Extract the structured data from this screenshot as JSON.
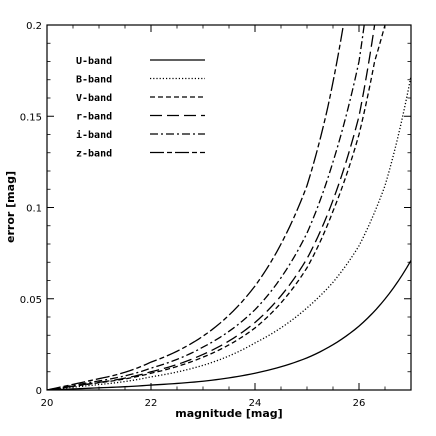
{
  "chart_data": {
    "type": "line",
    "title": "",
    "xlabel": "magnitude [mag]",
    "ylabel": "error [mag]",
    "xlim": [
      20,
      27
    ],
    "ylim": [
      0,
      0.2
    ],
    "x_ticks": [
      "20",
      "22",
      "24",
      "26"
    ],
    "y_ticks": [
      "0",
      "0.05",
      "0.1",
      "0.15",
      "0.2"
    ],
    "grid": false,
    "legend_position": "top-left",
    "series": [
      {
        "name": "U-band",
        "dash": "solid",
        "x": [
          20,
          21,
          22,
          23,
          24,
          25,
          26,
          27
        ],
        "values": [
          0.0,
          0.0012,
          0.0027,
          0.0048,
          0.0092,
          0.0176,
          0.035,
          0.071
        ]
      },
      {
        "name": "B-band",
        "dash": "dotted",
        "x": [
          20,
          21,
          22,
          23,
          24,
          25,
          25.5,
          26,
          26.5,
          27
        ],
        "values": [
          0.0,
          0.003,
          0.0072,
          0.0135,
          0.0258,
          0.045,
          0.059,
          0.079,
          0.112,
          0.172
        ]
      },
      {
        "name": "V-band",
        "dash": "short-dash",
        "x": [
          20,
          21,
          22,
          23,
          24,
          25,
          25.5,
          26,
          26.3,
          26.5
        ],
        "values": [
          0.0,
          0.004,
          0.0092,
          0.018,
          0.034,
          0.067,
          0.098,
          0.14,
          0.18,
          0.2
        ]
      },
      {
        "name": "r-band",
        "dash": "long-dash",
        "x": [
          20,
          21,
          22,
          23,
          24,
          25,
          25.5,
          26,
          26.3
        ],
        "values": [
          0.0,
          0.0042,
          0.01,
          0.0195,
          0.037,
          0.072,
          0.104,
          0.15,
          0.2
        ]
      },
      {
        "name": "i-band",
        "dash": "dash-dot",
        "x": [
          20,
          21,
          22,
          23,
          24,
          25,
          25.5,
          26,
          26.1
        ],
        "values": [
          0.0,
          0.005,
          0.012,
          0.0235,
          0.044,
          0.086,
          0.125,
          0.18,
          0.2
        ]
      },
      {
        "name": "z-band",
        "dash": "long-short",
        "x": [
          20,
          21,
          22,
          23,
          24,
          24.5,
          25,
          25.4,
          25.7
        ],
        "values": [
          0.0,
          0.0062,
          0.0153,
          0.0295,
          0.057,
          0.08,
          0.112,
          0.155,
          0.2
        ]
      }
    ]
  }
}
